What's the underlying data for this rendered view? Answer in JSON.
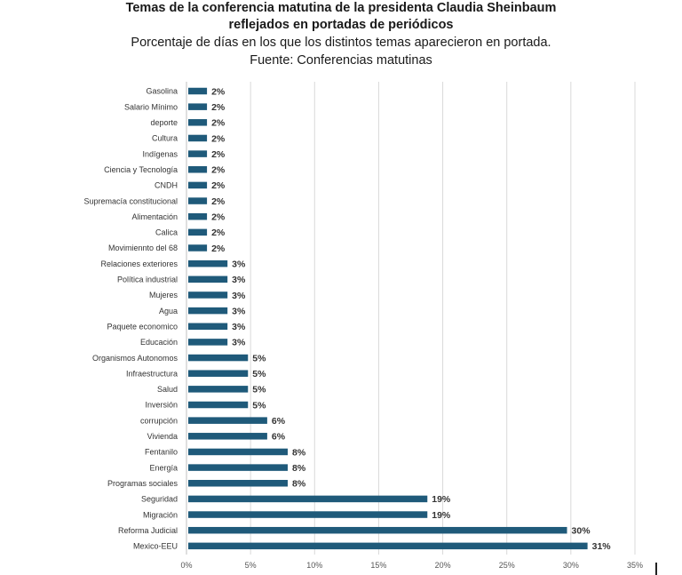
{
  "header": {
    "title_line1": "Temas de la conferencia matutina de la presidenta Claudia Sheinbaum",
    "title_line2": "reflejados en portadas de periódicos",
    "subtitle_line1": "Porcentaje de días en los que los distintos temas aparecieron en portada.",
    "subtitle_line2": "Fuente: Conferencias matutinas"
  },
  "colors": {
    "bar": "#1f5a7a",
    "grid": "#d9d9d9",
    "axis": "#bfbfbf"
  },
  "chart_data": {
    "type": "bar",
    "orientation": "horizontal",
    "title": "Temas de la conferencia matutina de la presidenta Claudia Sheinbaum reflejados en portadas de periódicos",
    "subtitle": "Porcentaje de días en los que los distintos temas aparecieron en portada.",
    "source": "Fuente: Conferencias matutinas",
    "xlabel": "",
    "ylabel": "",
    "xlim": [
      0,
      35
    ],
    "x_ticks": [
      0,
      5,
      10,
      15,
      20,
      25,
      30,
      35
    ],
    "x_tick_labels": [
      "0%",
      "5%",
      "10%",
      "15%",
      "20%",
      "25%",
      "30%",
      "35%"
    ],
    "grid": true,
    "legend": "none",
    "categories": [
      "Gasolina",
      "Salario Mínimo",
      "deporte",
      "Cultura",
      "Indígenas",
      "Ciencia y Tecnología",
      "CNDH",
      "Supremacía constitucional",
      "Alimentación",
      "Calica",
      "Movimiennto del 68",
      "Relaciones exteriores",
      "Política industrial",
      "Mujeres",
      "Agua",
      "Paquete economico",
      "Educación",
      "Organismos Autonomos",
      "Infraestructura",
      "Salud",
      "Inversión",
      "corrupción",
      "Vivienda",
      "Fentanilo",
      "Energía",
      "Programas sociales",
      "Seguridad",
      "Migración",
      "Reforma Judicial",
      "Mexico-EEU"
    ],
    "values": [
      1.6,
      1.6,
      1.6,
      1.6,
      1.6,
      1.6,
      1.6,
      1.6,
      1.6,
      1.6,
      1.6,
      3.2,
      3.2,
      3.2,
      3.2,
      3.2,
      3.2,
      4.8,
      4.8,
      4.8,
      4.8,
      6.3,
      6.3,
      7.9,
      7.9,
      7.9,
      18.8,
      18.8,
      29.7,
      31.3
    ],
    "value_labels": [
      "2%",
      "2%",
      "2%",
      "2%",
      "2%",
      "2%",
      "2%",
      "2%",
      "2%",
      "2%",
      "2%",
      "3%",
      "3%",
      "3%",
      "3%",
      "3%",
      "3%",
      "5%",
      "5%",
      "5%",
      "5%",
      "6%",
      "6%",
      "8%",
      "8%",
      "8%",
      "19%",
      "19%",
      "30%",
      "31%"
    ]
  }
}
